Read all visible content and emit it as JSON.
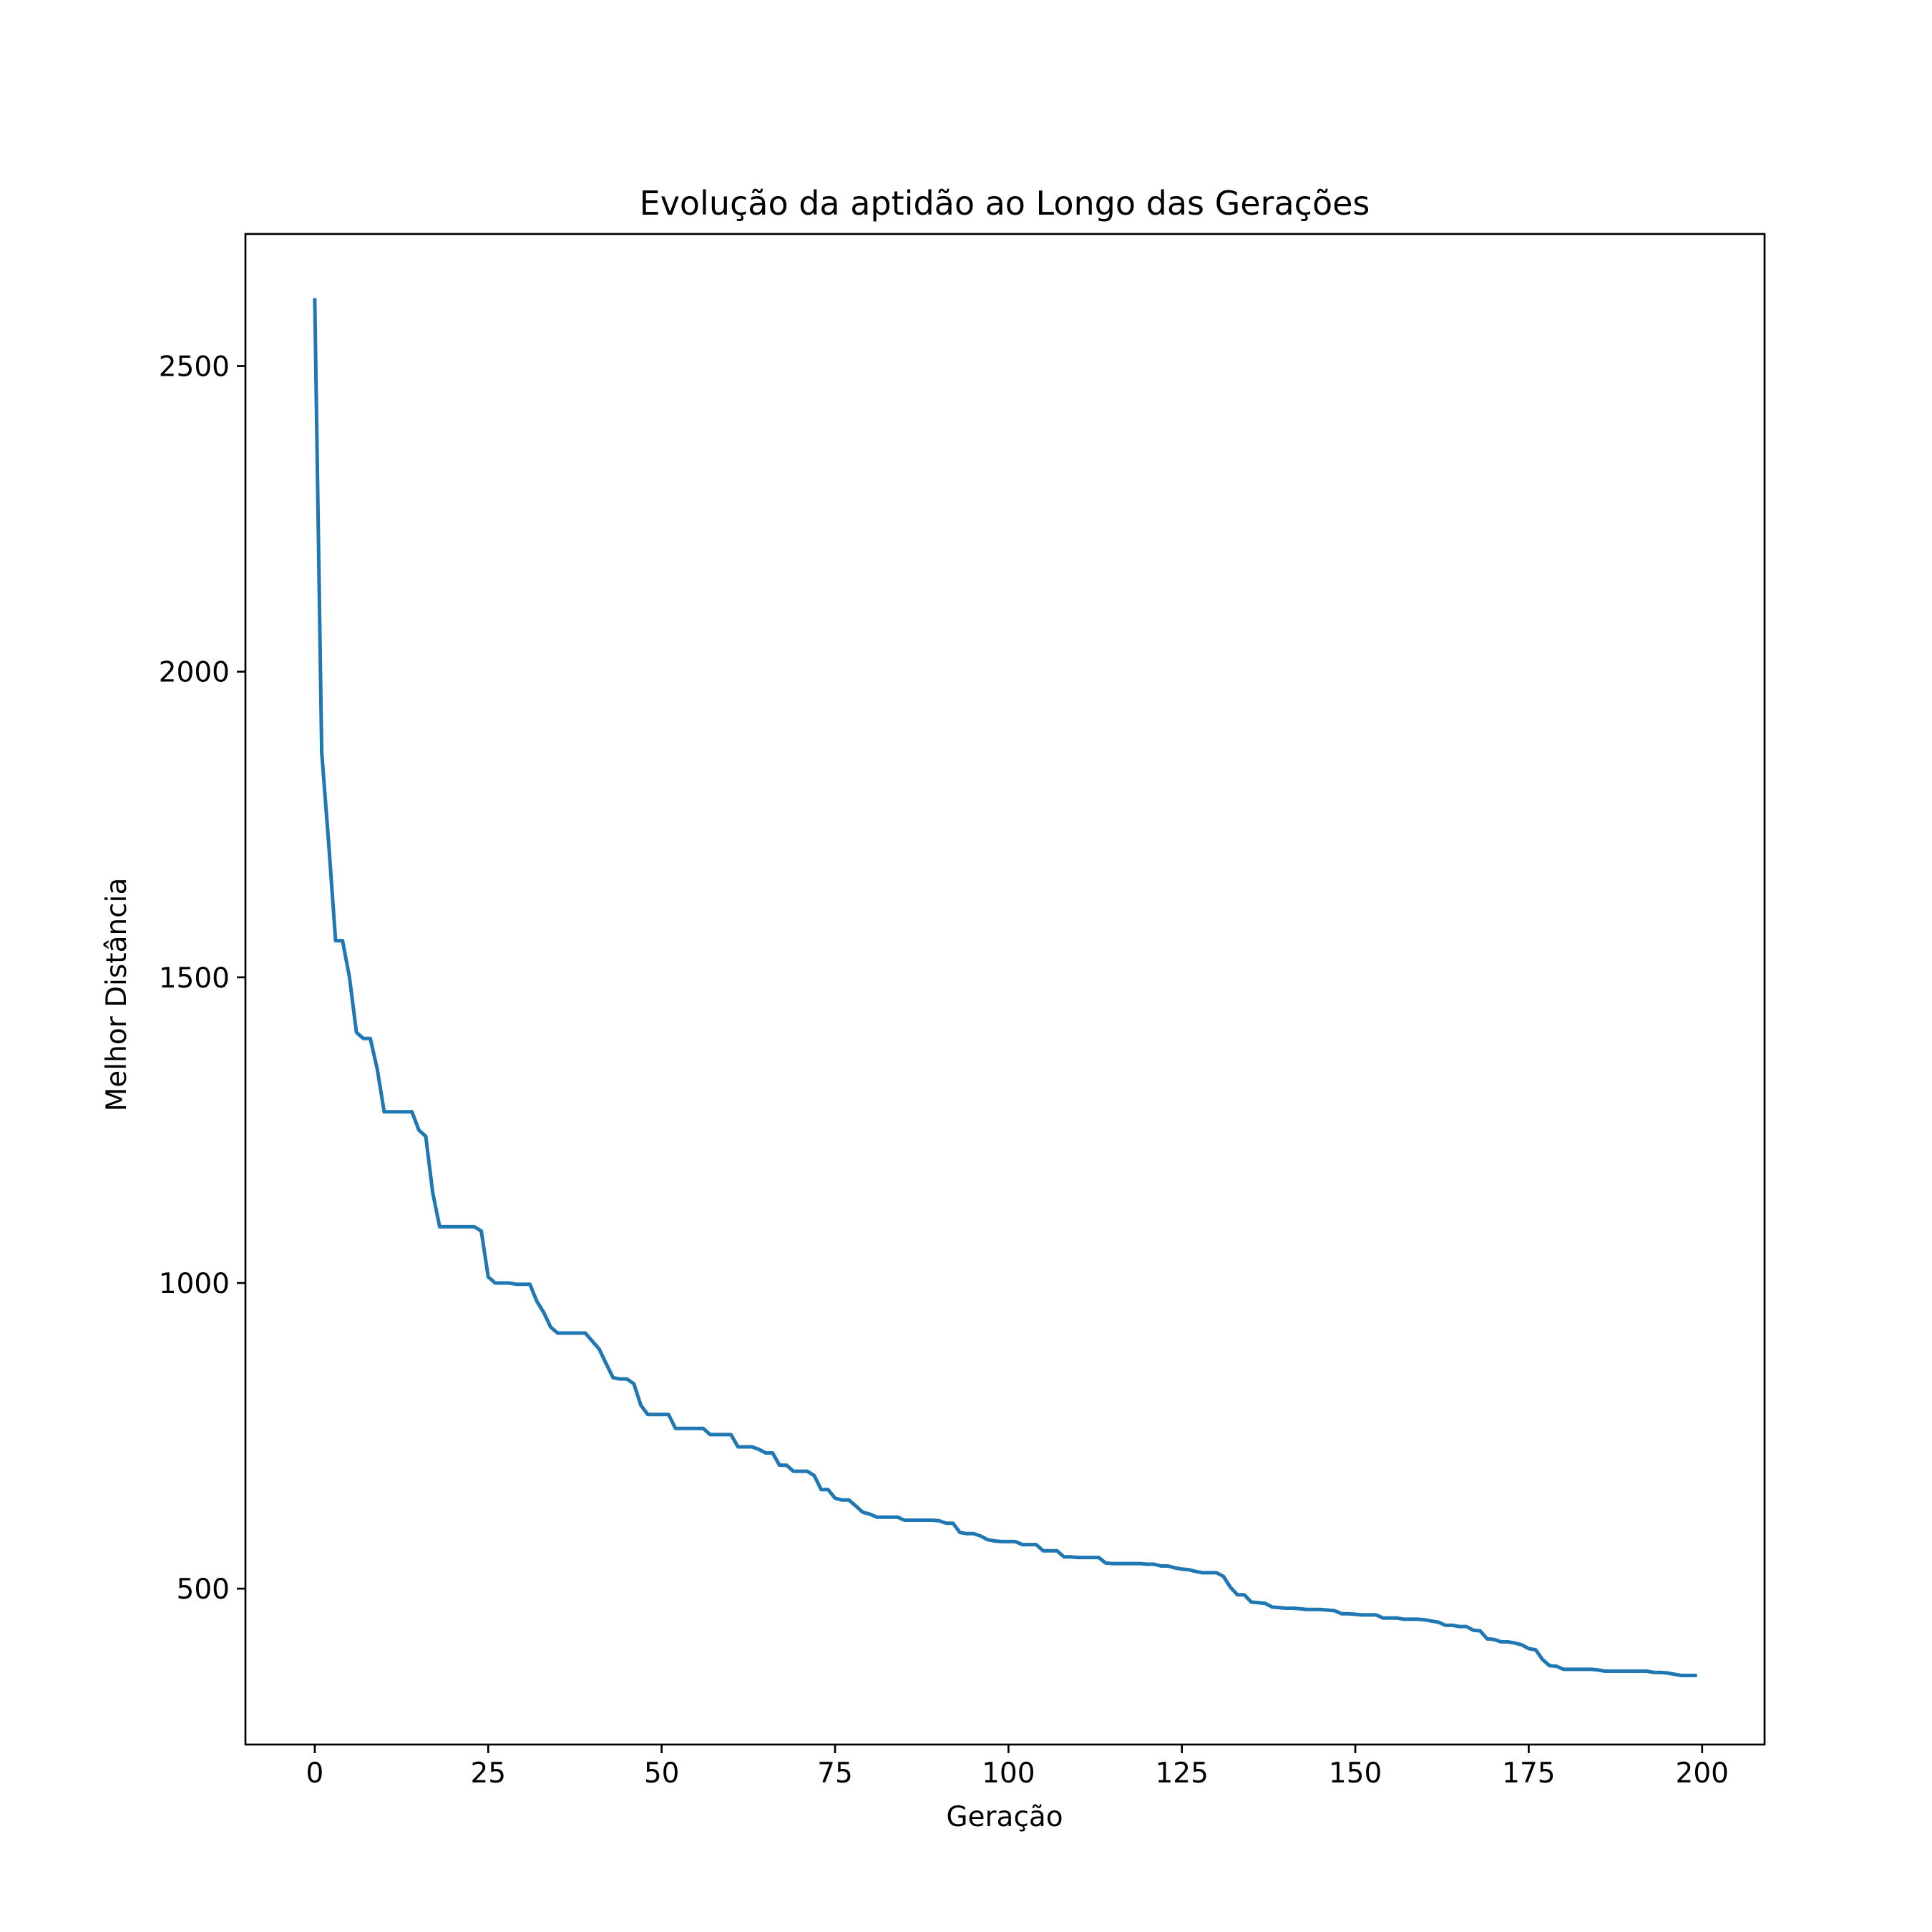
{
  "chart_data": {
    "type": "line",
    "title": "Evolução da aptidão ao Longo das Gerações",
    "xlabel": "Geração",
    "ylabel": "Melhor Distância",
    "xlim": [
      -10,
      209
    ],
    "ylim": [
      245,
      2716
    ],
    "xticks": [
      0,
      25,
      50,
      75,
      100,
      125,
      150,
      175,
      200
    ],
    "yticks": [
      500,
      1000,
      1500,
      2000,
      2500
    ],
    "grid": false,
    "legend": false,
    "line_color": "#1f77b4",
    "series": [
      {
        "points": [
          [
            0,
            2608
          ],
          [
            1,
            1868
          ],
          [
            2,
            1720
          ],
          [
            3,
            1560
          ],
          [
            4,
            1560
          ],
          [
            5,
            1500
          ],
          [
            6,
            1410
          ],
          [
            7,
            1400
          ],
          [
            8,
            1400
          ],
          [
            9,
            1350
          ],
          [
            10,
            1280
          ],
          [
            11,
            1280
          ],
          [
            12,
            1280
          ],
          [
            13,
            1280
          ],
          [
            14,
            1280
          ],
          [
            15,
            1250
          ],
          [
            16,
            1240
          ],
          [
            17,
            1148
          ],
          [
            18,
            1092
          ],
          [
            19,
            1092
          ],
          [
            20,
            1092
          ],
          [
            21,
            1092
          ],
          [
            22,
            1092
          ],
          [
            23,
            1092
          ],
          [
            24,
            1085
          ],
          [
            25,
            1010
          ],
          [
            26,
            1000
          ],
          [
            27,
            1000
          ],
          [
            28,
            1000
          ],
          [
            29,
            998
          ],
          [
            30,
            998
          ],
          [
            31,
            998
          ],
          [
            32,
            970
          ],
          [
            33,
            952
          ],
          [
            34,
            928
          ],
          [
            35,
            918
          ],
          [
            36,
            918
          ],
          [
            37,
            918
          ],
          [
            38,
            918
          ],
          [
            39,
            918
          ],
          [
            40,
            905
          ],
          [
            41,
            892
          ],
          [
            42,
            868
          ],
          [
            43,
            845
          ],
          [
            44,
            843
          ],
          [
            45,
            843
          ],
          [
            46,
            835
          ],
          [
            47,
            800
          ],
          [
            48,
            785
          ],
          [
            49,
            785
          ],
          [
            50,
            785
          ],
          [
            51,
            785
          ],
          [
            52,
            762
          ],
          [
            53,
            762
          ],
          [
            54,
            762
          ],
          [
            55,
            762
          ],
          [
            56,
            762
          ],
          [
            57,
            752
          ],
          [
            58,
            752
          ],
          [
            59,
            752
          ],
          [
            60,
            752
          ],
          [
            61,
            732
          ],
          [
            62,
            732
          ],
          [
            63,
            732
          ],
          [
            64,
            728
          ],
          [
            65,
            722
          ],
          [
            66,
            722
          ],
          [
            67,
            702
          ],
          [
            68,
            702
          ],
          [
            69,
            692
          ],
          [
            70,
            692
          ],
          [
            71,
            692
          ],
          [
            72,
            685
          ],
          [
            73,
            662
          ],
          [
            74,
            662
          ],
          [
            75,
            648
          ],
          [
            76,
            645
          ],
          [
            77,
            645
          ],
          [
            78,
            635
          ],
          [
            79,
            625
          ],
          [
            80,
            622
          ],
          [
            81,
            617
          ],
          [
            82,
            617
          ],
          [
            83,
            617
          ],
          [
            84,
            617
          ],
          [
            85,
            612
          ],
          [
            86,
            612
          ],
          [
            87,
            612
          ],
          [
            88,
            612
          ],
          [
            89,
            612
          ],
          [
            90,
            611
          ],
          [
            91,
            607
          ],
          [
            92,
            607
          ],
          [
            93,
            592
          ],
          [
            94,
            590
          ],
          [
            95,
            590
          ],
          [
            96,
            586
          ],
          [
            97,
            580
          ],
          [
            98,
            578
          ],
          [
            99,
            577
          ],
          [
            100,
            577
          ],
          [
            101,
            577
          ],
          [
            102,
            572
          ],
          [
            103,
            572
          ],
          [
            104,
            572
          ],
          [
            105,
            562
          ],
          [
            106,
            562
          ],
          [
            107,
            562
          ],
          [
            108,
            552
          ],
          [
            109,
            552
          ],
          [
            110,
            551
          ],
          [
            111,
            551
          ],
          [
            112,
            551
          ],
          [
            113,
            551
          ],
          [
            114,
            542
          ],
          [
            115,
            541
          ],
          [
            116,
            541
          ],
          [
            117,
            541
          ],
          [
            118,
            541
          ],
          [
            119,
            541
          ],
          [
            120,
            540
          ],
          [
            121,
            540
          ],
          [
            122,
            537
          ],
          [
            123,
            537
          ],
          [
            124,
            534
          ],
          [
            125,
            532
          ],
          [
            126,
            531
          ],
          [
            127,
            528
          ],
          [
            128,
            526
          ],
          [
            129,
            526
          ],
          [
            130,
            526
          ],
          [
            131,
            520
          ],
          [
            132,
            502
          ],
          [
            133,
            490
          ],
          [
            134,
            490
          ],
          [
            135,
            478
          ],
          [
            136,
            477
          ],
          [
            137,
            476
          ],
          [
            138,
            470
          ],
          [
            139,
            469
          ],
          [
            140,
            468
          ],
          [
            141,
            468
          ],
          [
            142,
            467
          ],
          [
            143,
            466
          ],
          [
            144,
            466
          ],
          [
            145,
            466
          ],
          [
            146,
            465
          ],
          [
            147,
            464
          ],
          [
            148,
            459
          ],
          [
            149,
            459
          ],
          [
            150,
            458
          ],
          [
            151,
            457
          ],
          [
            152,
            457
          ],
          [
            153,
            457
          ],
          [
            154,
            452
          ],
          [
            155,
            452
          ],
          [
            156,
            452
          ],
          [
            157,
            450
          ],
          [
            158,
            450
          ],
          [
            159,
            450
          ],
          [
            160,
            449
          ],
          [
            161,
            447
          ],
          [
            162,
            445
          ],
          [
            163,
            440
          ],
          [
            164,
            440
          ],
          [
            165,
            438
          ],
          [
            166,
            438
          ],
          [
            167,
            432
          ],
          [
            168,
            431
          ],
          [
            169,
            418
          ],
          [
            170,
            417
          ],
          [
            171,
            413
          ],
          [
            172,
            413
          ],
          [
            173,
            411
          ],
          [
            174,
            408
          ],
          [
            175,
            402
          ],
          [
            176,
            400
          ],
          [
            177,
            384
          ],
          [
            178,
            374
          ],
          [
            179,
            373
          ],
          [
            180,
            368
          ],
          [
            181,
            368
          ],
          [
            182,
            368
          ],
          [
            183,
            368
          ],
          [
            184,
            368
          ],
          [
            185,
            367
          ],
          [
            186,
            365
          ],
          [
            187,
            365
          ],
          [
            188,
            365
          ],
          [
            189,
            365
          ],
          [
            190,
            365
          ],
          [
            191,
            365
          ],
          [
            192,
            365
          ],
          [
            193,
            363
          ],
          [
            194,
            363
          ],
          [
            195,
            362
          ],
          [
            196,
            360
          ],
          [
            197,
            358
          ],
          [
            198,
            358
          ],
          [
            199,
            358
          ]
        ]
      }
    ]
  }
}
